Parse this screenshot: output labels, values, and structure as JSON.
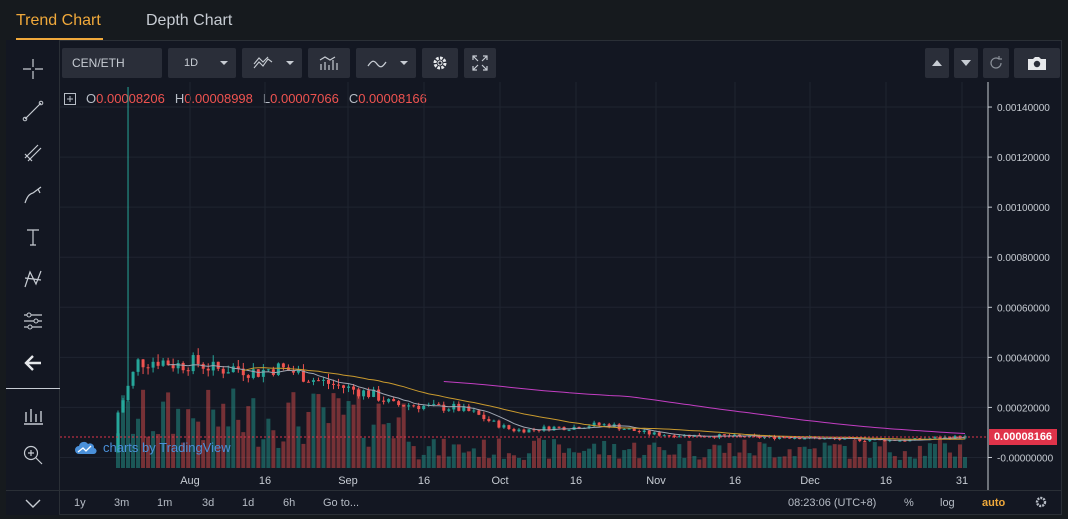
{
  "tabs": [
    {
      "label": "Trend Chart",
      "active": true
    },
    {
      "label": "Depth Chart",
      "active": false
    }
  ],
  "toolbar": {
    "symbol": "CEN/ETH",
    "interval": "1D"
  },
  "legend": {
    "o_label": "O",
    "o_value": "0.00008206",
    "h_label": "H",
    "h_value": "0.00008998",
    "l_label": "L",
    "l_value": "0.00007066",
    "c_label": "C",
    "c_value": "0.00008166"
  },
  "watermark": "charts by TradingView",
  "price_tag": "0.00008166",
  "bottom": {
    "ranges": [
      "1y",
      "3m",
      "1m",
      "3d",
      "1d",
      "6h"
    ],
    "goto": "Go to...",
    "time": "08:23:06 (UTC+8)",
    "percent": "%",
    "log": "log",
    "auto": "auto"
  },
  "colors": {
    "up": "#26a69a",
    "down": "#ef5350",
    "accent": "#f0a93b",
    "ma_gray": "#9fa6b2",
    "ma_orange": "#c99a2e",
    "ma_magenta": "#c23ec2"
  },
  "chart_data": {
    "type": "candlestick",
    "symbol": "CEN/ETH",
    "interval": "1D",
    "x_ticks": [
      "Aug",
      "16",
      "Sep",
      "16",
      "Oct",
      "16",
      "Nov",
      "16",
      "Dec",
      "16",
      "31"
    ],
    "y_ticks": [
      "0.00140000",
      "0.00120000",
      "0.00100000",
      "0.00080000",
      "0.00060000",
      "0.00040000",
      "0.00020000",
      "0.00000000"
    ],
    "ylim": [
      -5e-05,
      0.0015
    ],
    "last_price": 8.166e-05,
    "price_series": [
      0.00018,
      0.00038,
      0.00039,
      0.00037,
      0.00038,
      0.00035,
      0.00036,
      0.00034,
      0.00036,
      0.00034,
      0.00031,
      0.00029,
      0.00027,
      0.00025,
      0.00021,
      0.00021,
      0.0002,
      0.0002,
      0.00018,
      0.00014,
      0.00011,
      0.00011,
      0.00012,
      0.00012,
      0.00013,
      0.00013,
      0.00011,
      9.5e-05,
      9e-05,
      8.8e-05,
      8.7e-05,
      8.5e-05,
      8.2e-05,
      8e-05,
      8.2e-05,
      7.8e-05,
      7.5e-05,
      7.2e-05,
      7e-05,
      7e-05,
      6.8e-05,
      7.5e-05,
      8e-05,
      8.2e-05
    ],
    "spike_high": 0.00148,
    "grid": true
  }
}
